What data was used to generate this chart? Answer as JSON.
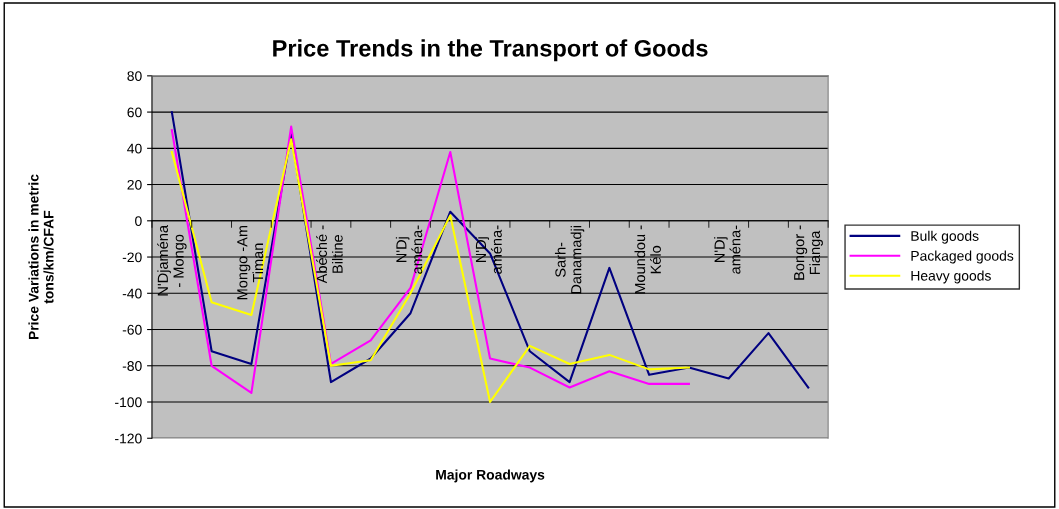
{
  "chart_data": {
    "type": "line",
    "title": "Price Trends in the Transport of Goods",
    "xlabel": "Major Roadways",
    "ylabel": "Price Variations in metric\ntons/km/CFAF",
    "categories": [
      "N'Djaména\n- Mongo",
      null,
      "Mongo -Am\nTiman",
      null,
      "Abéché -\nBiltine",
      null,
      "N'Dj\naména-",
      null,
      "N'Dj\naména-",
      null,
      "Sarh-\nDanamadji",
      null,
      "Moundou -\nKélo",
      null,
      "N'Dj\naména-",
      null,
      "Bongor -\nFianga"
    ],
    "series": [
      {
        "name": "Bulk goods",
        "color": "#000080",
        "values": [
          60,
          -72,
          -79,
          48,
          -89,
          -76,
          -51,
          5,
          -18,
          -72,
          -89,
          -26,
          -85,
          -81,
          -87,
          -62,
          -92
        ]
      },
      {
        "name": "Packaged goods",
        "color": "#ff00ff",
        "values": [
          50,
          -80,
          -95,
          52,
          -79,
          -66,
          -37,
          38,
          -76,
          -81,
          -92,
          -83,
          -90,
          -90,
          null,
          null,
          null
        ]
      },
      {
        "name": "Heavy goods",
        "color": "#ffff00",
        "values": [
          38,
          -45,
          -52,
          45,
          -80,
          -77,
          -40,
          3,
          -100,
          -69,
          -79,
          -74,
          -82,
          -81,
          null,
          null,
          null
        ]
      }
    ],
    "ylim": [
      -120,
      80
    ],
    "yticks": [
      -120,
      -100,
      -80,
      -60,
      -40,
      -20,
      0,
      20,
      40,
      60,
      80
    ],
    "grid": "y",
    "legend": "right",
    "marker": "none",
    "line_style": "solid"
  }
}
